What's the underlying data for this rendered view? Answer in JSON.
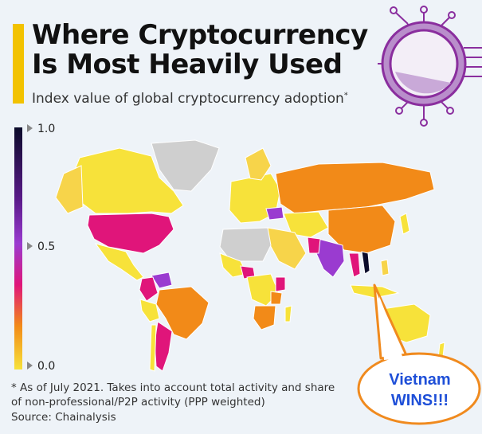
{
  "header": {
    "title_line1": "Where Cryptocurrency",
    "title_line2": "Is Most Heavily Used",
    "subtitle": "Index value of global cryptocurrency adoption",
    "subtitle_mark": "*"
  },
  "legend": {
    "max_label": "1.0",
    "mid_label": "0.5",
    "min_label": "0.0",
    "colors": [
      "#0b0b2a",
      "#5a1a8a",
      "#9a3bd0",
      "#e0157a",
      "#f28a18",
      "#f7e23a"
    ]
  },
  "map": {
    "description_colors": {
      "land_default": "#f7e23a",
      "no_data": "#cfcfcf",
      "high": "#e0157a",
      "mid": "#f28a18",
      "top": "#9a3bd0",
      "leader": "#0b0b2a"
    }
  },
  "footnote": {
    "line1": "* As of July 2021. Takes into account total activity and share",
    "line2": "of non-professional/P2P activity (PPP weighted)",
    "source": "Source: Chainalysis"
  },
  "callout": {
    "line1": "Vietnam",
    "line2": "WINS!!!",
    "text_color": "#1e4fd8",
    "fill_color": "#ffffff",
    "border_color": "#f08a1e"
  },
  "icon": {
    "name": "microchip-icon"
  }
}
